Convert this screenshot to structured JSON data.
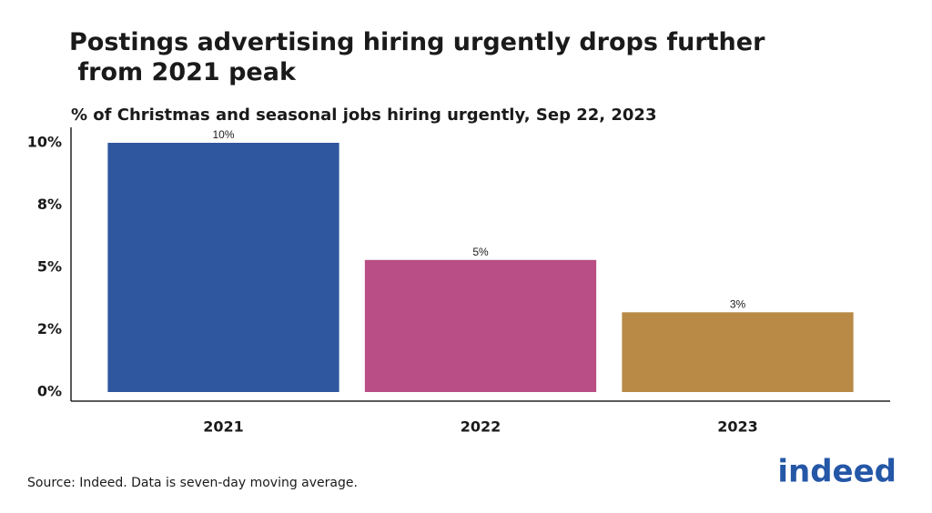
{
  "chart_data": {
    "type": "bar",
    "title": "Postings advertising hiring urgently drops further\n from 2021 peak",
    "subtitle": "% of Christmas and seasonal jobs hiring urgently, Sep 22, 2023",
    "categories": [
      "2021",
      "2022",
      "2023"
    ],
    "values": [
      10,
      5.3,
      3.2
    ],
    "value_labels": [
      "10%",
      "5%",
      "3%"
    ],
    "colors": [
      "#2f579f",
      "#b84e85",
      "#b88a46"
    ],
    "ylim": [
      0,
      10
    ],
    "yticks": [
      {
        "value": 0,
        "label": "0%"
      },
      {
        "value": 2.5,
        "label": "2%"
      },
      {
        "value": 5,
        "label": "5%"
      },
      {
        "value": 7.5,
        "label": "8%"
      },
      {
        "value": 10,
        "label": "10%"
      }
    ],
    "grid": false,
    "source": "Source: Indeed. Data is seven-day moving average."
  },
  "logo": "indeed"
}
